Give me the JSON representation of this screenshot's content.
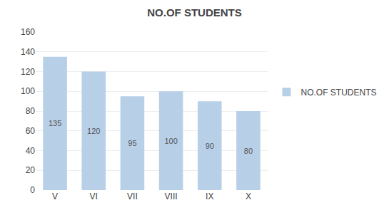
{
  "chart_data": {
    "type": "bar",
    "title": "NO.OF STUDENTS",
    "categories": [
      "V",
      "VI",
      "VII",
      "VIII",
      "IX",
      "X"
    ],
    "series": [
      {
        "name": "NO.OF STUDENTS",
        "color": "#b8cfe8",
        "values": [
          135,
          120,
          95,
          100,
          90,
          80
        ]
      }
    ],
    "ylim": [
      0,
      160
    ],
    "yticks": [
      0,
      20,
      40,
      60,
      80,
      100,
      120,
      140,
      160
    ],
    "grid": true,
    "data_labels": true,
    "legend": "right"
  }
}
